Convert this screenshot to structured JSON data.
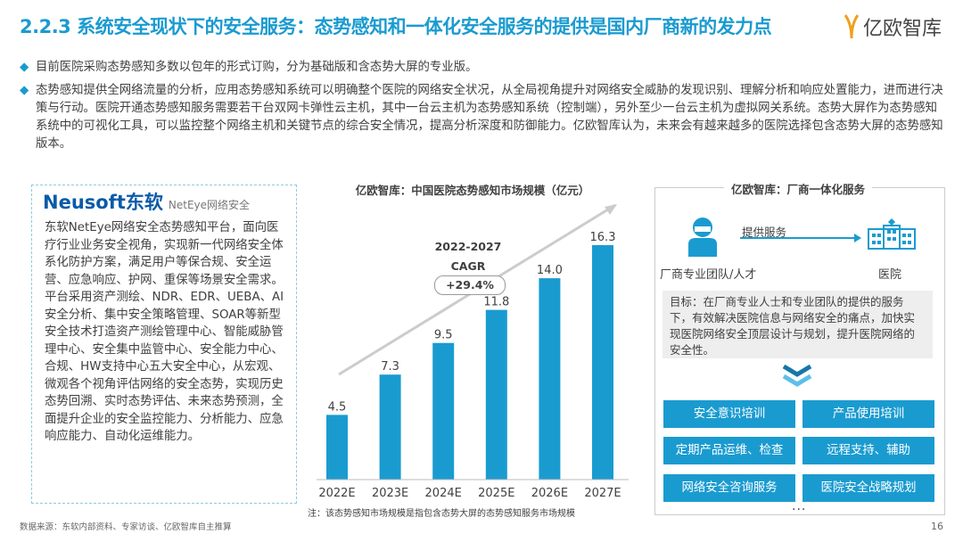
{
  "header": {
    "title": "2.2.3 系统安全现状下的安全服务：态势感知和一体化安全服务的提供是国内厂商新的发力点",
    "logo_text": "亿欧智库"
  },
  "bullets": [
    "目前医院采购态势感知多数以包年的形式订购，分为基础版和含态势大屏的专业版。",
    "态势感知提供全网络流量的分析，应用态势感知系统可以明确整个医院的网络安全状况，从全局视角提升对网络安全威胁的发现识别、理解分析和响应处置能力，进而进行决策与行动。医院开通态势感知服务需要若干台双网卡弹性云主机，其中一台云主机为态势感知系统（控制端），另外至少一台云主机为虚拟网关系统。态势大屏作为态势感知系统中的可视化工具，可以监控整个网络主机和关键节点的综合安全情况，提高分析深度和防御能力。亿欧智库认为，未来会有越来越多的医院选择包含态势大屏的态势感知版本。"
  ],
  "neusoft": {
    "logo": "Neusoft东软",
    "sub": "NetEye网络安全",
    "text": "东软NetEye网络安全态势感知平台，面向医疗行业业务安全视角，实现新一代网络安全体系化防护方案，满足用户等保合规、安全运营、应急响应、护网、重保等场景安全需求。平台采用资产测绘、NDR、EDR、UEBA、AI安全分析、集中安全策略管理、SOAR等新型安全技术打造资产测绘管理中心、智能威胁管理中心、安全集中监管中心、安全能力中心、合规、HW支持中心五大安全中心，从宏观、微观各个视角评估网络的安全态势，实现历史态势回溯、实时态势评估、未来态势预测，全面提升企业的安全监控能力、分析能力、应急响应能力、自动化运维能力。"
  },
  "chart_data": {
    "type": "bar",
    "title": "亿欧智库：中国医院态势感知市场规模（亿元）",
    "categories": [
      "2022E",
      "2023E",
      "2024E",
      "2025E",
      "2026E",
      "2027E"
    ],
    "values": [
      4.5,
      7.3,
      9.5,
      11.8,
      14.0,
      16.3
    ],
    "labels": [
      "4.5",
      "7.3",
      "9.5",
      "11.8",
      "14.0",
      "16.3"
    ],
    "ylim": [
      0,
      17
    ],
    "grid": false,
    "color": "#1a9bd0",
    "cagr_label": "2022-2027 CAGR",
    "cagr_value": "+29.4%",
    "note": "注：该态势感知市场规模是指包含态势大屏的态势感知服务市场规模"
  },
  "right": {
    "title": "亿欧智库：厂商一体化服务",
    "arrow_label": "提供服务",
    "vendor": "厂商专业团队/人才",
    "hospital": "医院",
    "goal": "目标：在厂商专业人士和专业团队的提供的服务下，有效解决医院信息与网络安全的痛点，加快实现医院网络安全顶层设计与规划，提升医院网络的安全性。",
    "services": [
      "安全意识培训",
      "产品使用培训",
      "定期产品运维、检查",
      "远程支持、辅助",
      "网络安全咨询服务",
      "医院安全战略规划"
    ],
    "more": "..."
  },
  "footer": {
    "source": "数据来源：东软内部资料、专家访谈、亿欧智库自主推算",
    "page": "16"
  },
  "colors": {
    "accent": "#1a9bd0"
  }
}
